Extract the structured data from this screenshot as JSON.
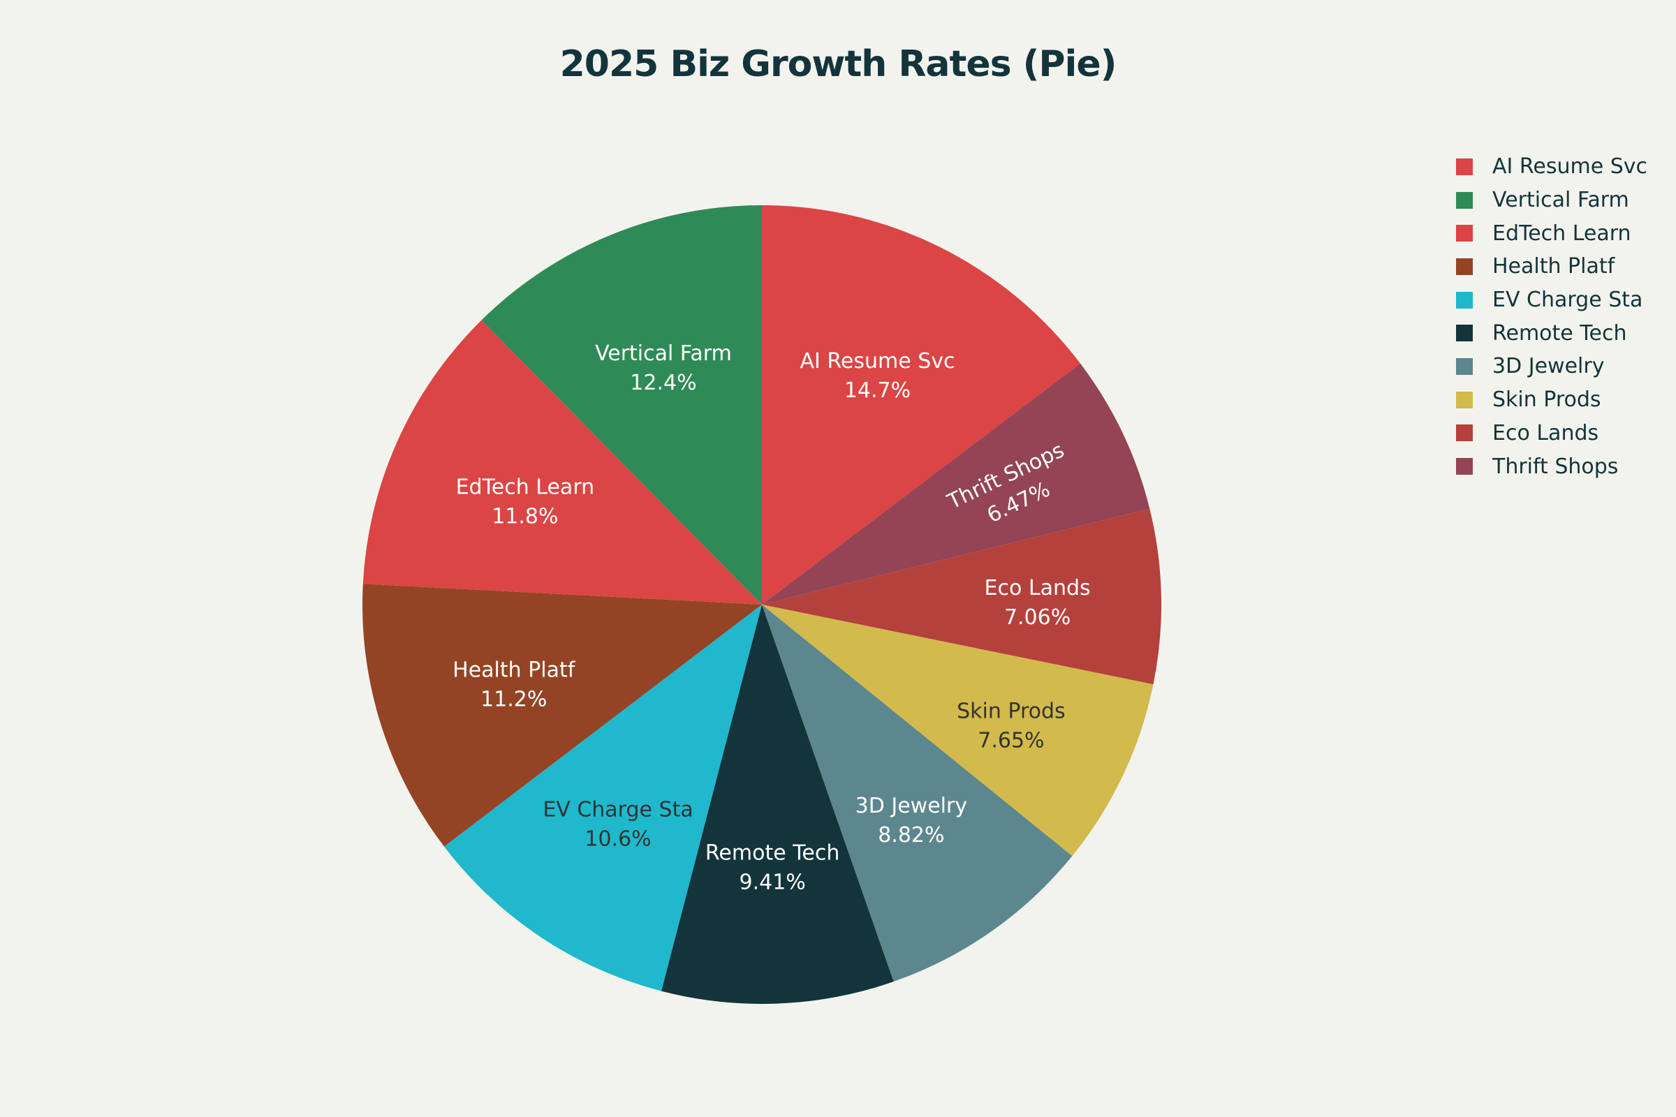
{
  "chart_data": {
    "type": "pie",
    "title": "2025 Biz Growth Rates (Pie)",
    "legend_position": "top-right",
    "direction": "clockwise",
    "start_angle_deg": 90,
    "slices": [
      {
        "label": "AI Resume Svc",
        "value": 14.7,
        "display": "14.7%",
        "color": "#db4545",
        "text_color": "#ffffff"
      },
      {
        "label": "Thrift Shops",
        "value": 6.47,
        "display": "6.47%",
        "color": "#944454",
        "text_color": "#ffffff"
      },
      {
        "label": "Eco Lands",
        "value": 7.06,
        "display": "7.06%",
        "color": "#b4413c",
        "text_color": "#ffffff"
      },
      {
        "label": "Skin Prods",
        "value": 7.65,
        "display": "7.65%",
        "color": "#d2ba4c",
        "text_color": "#333333"
      },
      {
        "label": "3D Jewelry",
        "value": 8.82,
        "display": "8.82%",
        "color": "#5d878f",
        "text_color": "#ffffff"
      },
      {
        "label": "Remote Tech",
        "value": 9.41,
        "display": "9.41%",
        "color": "#13343b",
        "text_color": "#ffffff"
      },
      {
        "label": "EV Charge Sta",
        "value": 10.6,
        "display": "10.6%",
        "color": "#1fb8cd",
        "text_color": "#333333"
      },
      {
        "label": "Health Platf",
        "value": 11.2,
        "display": "11.2%",
        "color": "#944425",
        "text_color": "#ffffff"
      },
      {
        "label": "EdTech Learn",
        "value": 11.8,
        "display": "11.8%",
        "color": "#db4545",
        "text_color": "#ffffff"
      },
      {
        "label": "Vertical Farm",
        "value": 12.4,
        "display": "12.4%",
        "color": "#2e8b57",
        "text_color": "#ffffff"
      }
    ],
    "legend": [
      {
        "label": "AI Resume Svc",
        "color": "#db4545"
      },
      {
        "label": "Vertical Farm",
        "color": "#2e8b57"
      },
      {
        "label": "EdTech Learn",
        "color": "#db4545"
      },
      {
        "label": "Health Platf",
        "color": "#944425"
      },
      {
        "label": "EV Charge Sta",
        "color": "#1fb8cd"
      },
      {
        "label": "Remote Tech",
        "color": "#13343b"
      },
      {
        "label": "3D Jewelry",
        "color": "#5d878f"
      },
      {
        "label": "Skin Prods",
        "color": "#d2ba4c"
      },
      {
        "label": "Eco Lands",
        "color": "#b4413c"
      },
      {
        "label": "Thrift Shops",
        "color": "#944454"
      }
    ]
  }
}
